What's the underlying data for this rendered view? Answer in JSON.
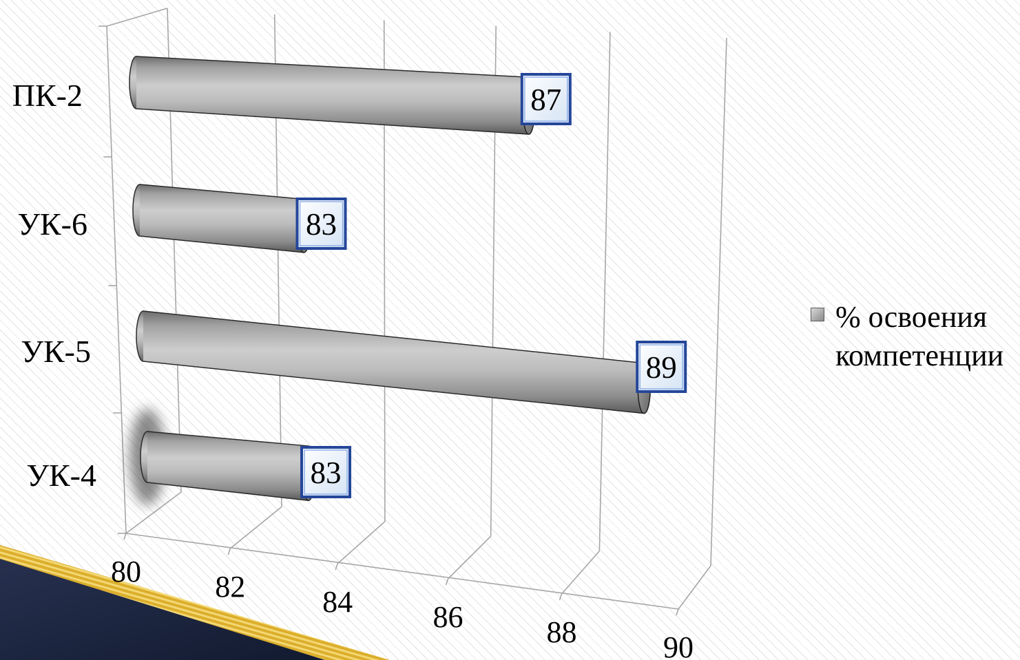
{
  "chart_data": {
    "type": "bar",
    "orientation": "horizontal",
    "style": "3d-cylinder",
    "categories": [
      "ПК-2",
      "УК-6",
      "УК-5",
      "УК-4"
    ],
    "series": [
      {
        "name": "% освоения компетенции",
        "values": [
          87,
          83,
          89,
          83
        ],
        "color": "#a6a6a6"
      }
    ],
    "xlim": [
      80,
      90
    ],
    "xticks": [
      80,
      82,
      84,
      86,
      88,
      90
    ],
    "data_labels": true,
    "grid": true,
    "legend": "right"
  },
  "colors": {
    "gridline": "#a6a6a6",
    "data_label_border": "#25479a",
    "data_label_inner_border": "#8fb0e8",
    "decoration_gold": "#dcae2c",
    "decoration_navy": "#1b2440"
  }
}
